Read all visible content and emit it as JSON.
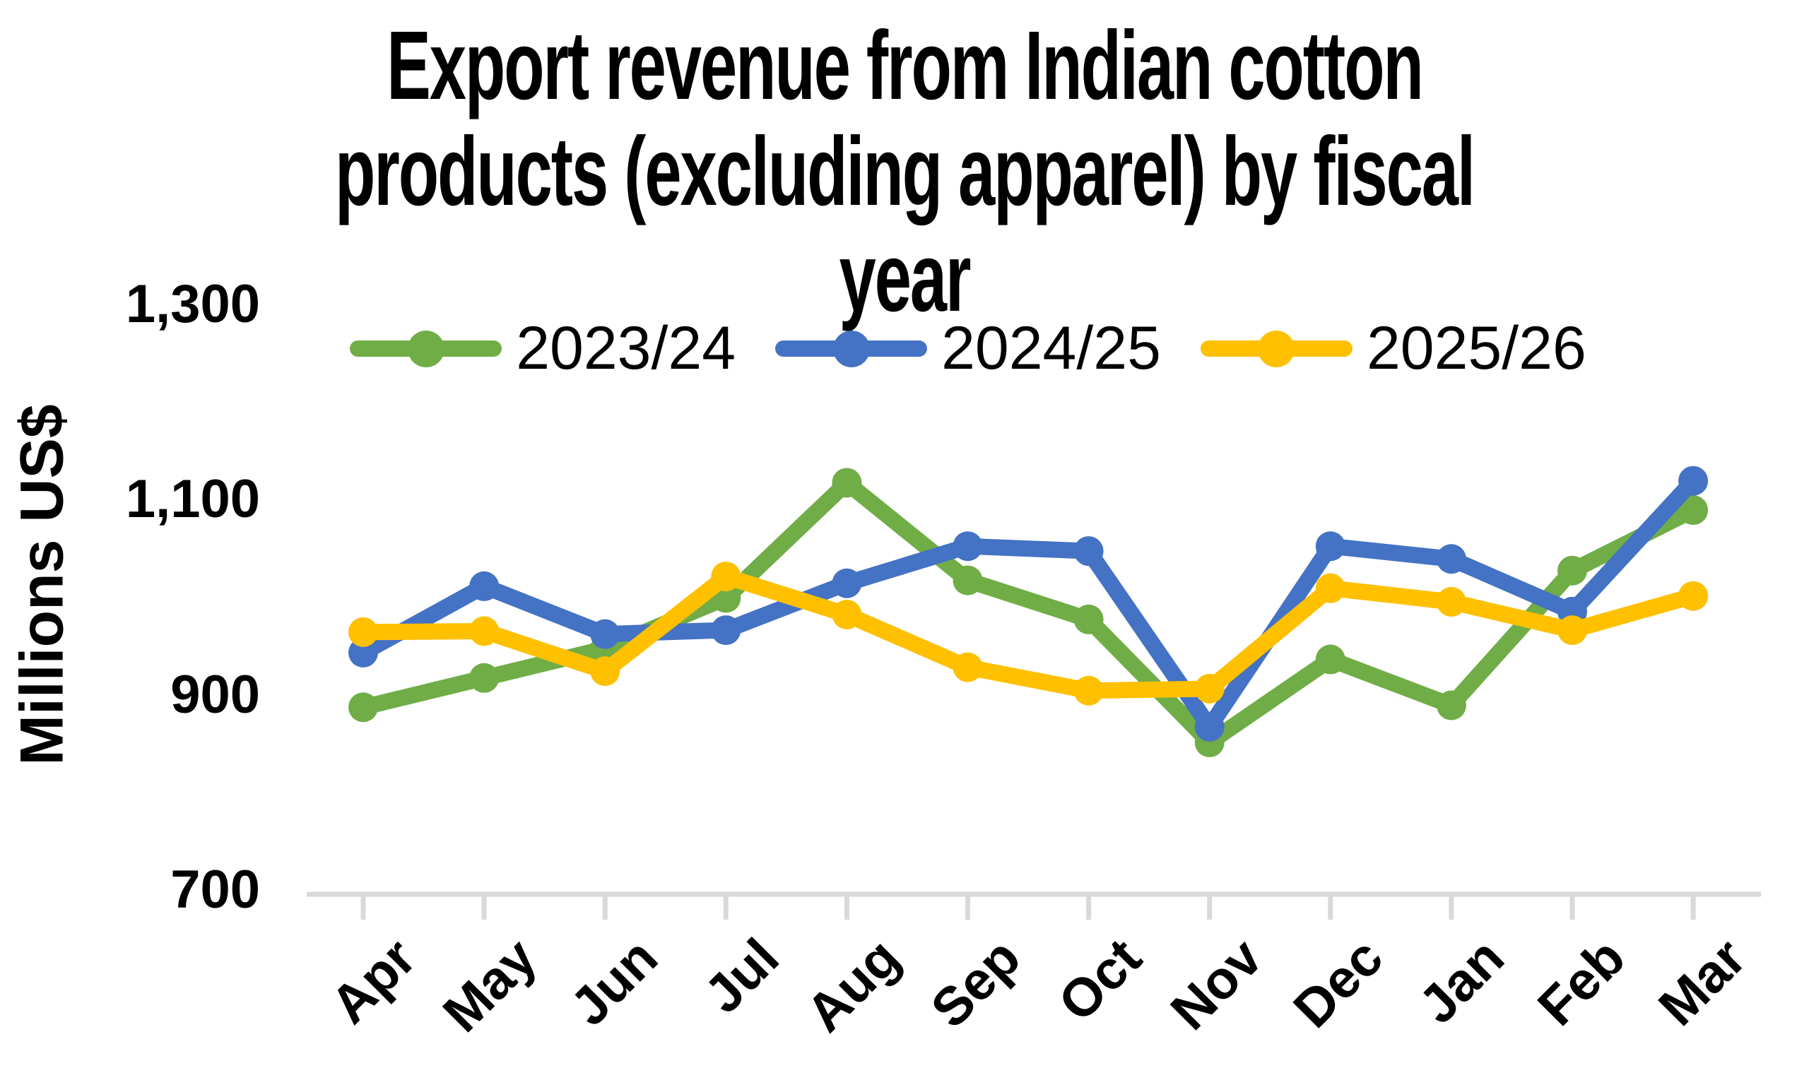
{
  "chart_data": {
    "type": "line",
    "title": "Export revenue from Indian cotton products (excluding apparel) by fiscal year",
    "title_lines": [
      "Export revenue from Indian cotton",
      "products (excluding apparel) by fiscal",
      "year"
    ],
    "ylabel": "Millions US$",
    "xlabel": "",
    "ylim": [
      700,
      1300
    ],
    "gridlines": false,
    "legend_position": "top",
    "axis_color": "#D9D9D9",
    "y_ticks": [
      {
        "value": 1300,
        "label": "1,300"
      },
      {
        "value": 1100,
        "label": "1,100"
      },
      {
        "value": 900,
        "label": "900"
      },
      {
        "value": 700,
        "label": "700"
      }
    ],
    "categories": [
      "Apr",
      "May",
      "Jun",
      "Jul",
      "Aug",
      "Sep",
      "Oct",
      "Nov",
      "Dec",
      "Jan",
      "Feb",
      "Mar"
    ],
    "series": [
      {
        "name": "2023/24",
        "color": "#70AD47",
        "values": [
          888,
          918,
          948,
          1000,
          1118,
          1018,
          978,
          852,
          937,
          890,
          1028,
          1090
        ]
      },
      {
        "name": "2024/25",
        "color": "#4472C4",
        "values": [
          944,
          1012,
          963,
          967,
          1015,
          1053,
          1048,
          868,
          1053,
          1040,
          986,
          1120
        ]
      },
      {
        "name": "2025/26",
        "color": "#FFC000",
        "values": [
          965,
          966,
          925,
          1022,
          983,
          929,
          905,
          907,
          1010,
          996,
          967,
          1002
        ]
      }
    ]
  }
}
